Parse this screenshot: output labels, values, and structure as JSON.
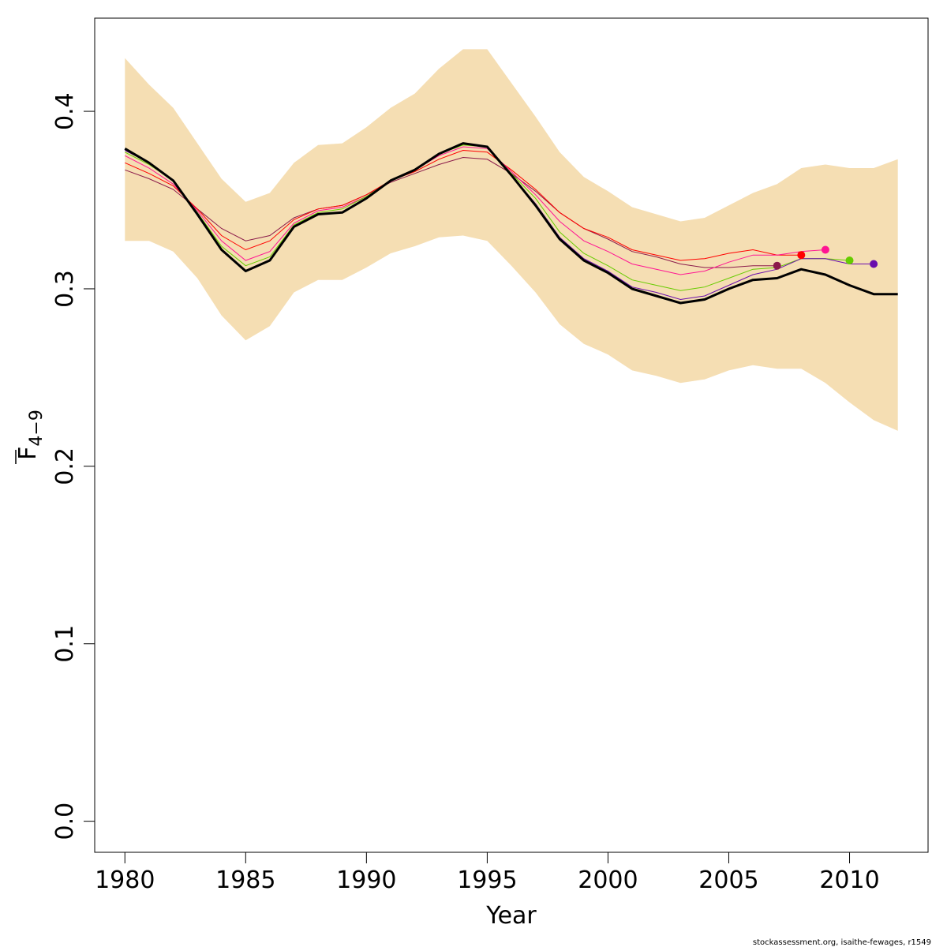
{
  "chart_data": {
    "type": "line",
    "xlabel": "Year",
    "ylabel": "F",
    "ylabel_subscript": "4−9",
    "credit": "stockassessment.org, isaithe-fewages, r1549",
    "xlim": [
      1978.75,
      2013.25
    ],
    "ylim": [
      -0.0175,
      0.4525
    ],
    "x_ticks": [
      1980,
      1985,
      1990,
      1995,
      2000,
      2005,
      2010
    ],
    "y_ticks": [
      0.0,
      0.1,
      0.2,
      0.3,
      0.4
    ],
    "y_tick_labels": [
      "0.0",
      "0.1",
      "0.2",
      "0.3",
      "0.4"
    ],
    "band_color": "#f5deb3",
    "confidence_band": {
      "x": [
        1980,
        1981,
        1982,
        1983,
        1984,
        1985,
        1986,
        1987,
        1988,
        1989,
        1990,
        1991,
        1992,
        1993,
        1994,
        1995,
        1996,
        1997,
        1998,
        1999,
        2000,
        2001,
        2002,
        2003,
        2004,
        2005,
        2006,
        2007,
        2008,
        2009,
        2010,
        2011,
        2012
      ],
      "lower": [
        0.327,
        0.327,
        0.321,
        0.306,
        0.285,
        0.271,
        0.279,
        0.298,
        0.305,
        0.305,
        0.312,
        0.32,
        0.324,
        0.329,
        0.33,
        0.327,
        0.313,
        0.298,
        0.28,
        0.269,
        0.263,
        0.254,
        0.251,
        0.247,
        0.249,
        0.254,
        0.257,
        0.255,
        0.255,
        0.247,
        0.236,
        0.226,
        0.22
      ],
      "upper": [
        0.43,
        0.415,
        0.402,
        0.382,
        0.362,
        0.349,
        0.354,
        0.371,
        0.381,
        0.382,
        0.391,
        0.402,
        0.41,
        0.424,
        0.435,
        0.435,
        0.416,
        0.397,
        0.377,
        0.363,
        0.355,
        0.346,
        0.342,
        0.338,
        0.34,
        0.347,
        0.354,
        0.359,
        0.368,
        0.37,
        0.368,
        0.368,
        0.373
      ]
    },
    "main_series": {
      "color": "#000000",
      "x": [
        1980,
        1981,
        1982,
        1983,
        1984,
        1985,
        1986,
        1987,
        1988,
        1989,
        1990,
        1991,
        1992,
        1993,
        1994,
        1995,
        1996,
        1997,
        1998,
        1999,
        2000,
        2001,
        2002,
        2003,
        2004,
        2005,
        2006,
        2007,
        2008,
        2009,
        2010,
        2011,
        2012
      ],
      "y": [
        0.379,
        0.371,
        0.361,
        0.342,
        0.322,
        0.31,
        0.316,
        0.335,
        0.342,
        0.343,
        0.351,
        0.361,
        0.367,
        0.376,
        0.382,
        0.38,
        0.364,
        0.347,
        0.328,
        0.316,
        0.309,
        0.3,
        0.296,
        0.292,
        0.294,
        0.3,
        0.305,
        0.306,
        0.311,
        0.308,
        0.302,
        0.297,
        0.297
      ]
    },
    "retro_series": [
      {
        "color": "#8b1a4a",
        "x": [
          1980,
          1981,
          1982,
          1983,
          1984,
          1985,
          1986,
          1987,
          1988,
          1989,
          1990,
          1991,
          1992,
          1993,
          1994,
          1995,
          1996,
          1997,
          1998,
          1999,
          2000,
          2001,
          2002,
          2003,
          2004,
          2005,
          2006,
          2007
        ],
        "y": [
          0.367,
          0.362,
          0.356,
          0.345,
          0.334,
          0.327,
          0.33,
          0.34,
          0.345,
          0.347,
          0.353,
          0.36,
          0.365,
          0.37,
          0.374,
          0.373,
          0.365,
          0.355,
          0.343,
          0.334,
          0.328,
          0.321,
          0.318,
          0.314,
          0.312,
          0.312,
          0.313,
          0.313
        ]
      },
      {
        "color": "#ff0000",
        "x": [
          1980,
          1981,
          1982,
          1983,
          1984,
          1985,
          1986,
          1987,
          1988,
          1989,
          1990,
          1991,
          1992,
          1993,
          1994,
          1995,
          1996,
          1997,
          1998,
          1999,
          2000,
          2001,
          2002,
          2003,
          2004,
          2005,
          2006,
          2007,
          2008
        ],
        "y": [
          0.371,
          0.365,
          0.358,
          0.345,
          0.33,
          0.322,
          0.327,
          0.339,
          0.345,
          0.347,
          0.353,
          0.361,
          0.366,
          0.373,
          0.378,
          0.377,
          0.367,
          0.356,
          0.343,
          0.334,
          0.329,
          0.322,
          0.319,
          0.316,
          0.317,
          0.32,
          0.322,
          0.319,
          0.319
        ]
      },
      {
        "color": "#ff1493",
        "x": [
          1980,
          1981,
          1982,
          1983,
          1984,
          1985,
          1986,
          1987,
          1988,
          1989,
          1990,
          1991,
          1992,
          1993,
          1994,
          1995,
          1996,
          1997,
          1998,
          1999,
          2000,
          2001,
          2002,
          2003,
          2004,
          2005,
          2006,
          2007,
          2008,
          2009
        ],
        "y": [
          0.375,
          0.368,
          0.359,
          0.344,
          0.327,
          0.316,
          0.321,
          0.337,
          0.344,
          0.346,
          0.352,
          0.361,
          0.367,
          0.375,
          0.38,
          0.379,
          0.366,
          0.353,
          0.338,
          0.327,
          0.321,
          0.314,
          0.311,
          0.308,
          0.31,
          0.315,
          0.319,
          0.319,
          0.321,
          0.322
        ]
      },
      {
        "color": "#66cc00",
        "x": [
          1980,
          1981,
          1982,
          1983,
          1984,
          1985,
          1986,
          1987,
          1988,
          1989,
          1990,
          1991,
          1992,
          1993,
          1994,
          1995,
          1996,
          1997,
          1998,
          1999,
          2000,
          2001,
          2002,
          2003,
          2004,
          2005,
          2006,
          2007,
          2008,
          2009,
          2010
        ],
        "y": [
          0.377,
          0.37,
          0.361,
          0.343,
          0.324,
          0.313,
          0.318,
          0.336,
          0.343,
          0.345,
          0.352,
          0.361,
          0.367,
          0.376,
          0.381,
          0.38,
          0.365,
          0.351,
          0.332,
          0.32,
          0.313,
          0.305,
          0.302,
          0.299,
          0.301,
          0.306,
          0.311,
          0.312,
          0.317,
          0.317,
          0.316
        ]
      },
      {
        "color": "#6a0dad",
        "x": [
          1980,
          1981,
          1982,
          1983,
          1984,
          1985,
          1986,
          1987,
          1988,
          1989,
          1990,
          1991,
          1992,
          1993,
          1994,
          1995,
          1996,
          1997,
          1998,
          1999,
          2000,
          2001,
          2002,
          2003,
          2004,
          2005,
          2006,
          2007,
          2008,
          2009,
          2010,
          2011
        ],
        "y": [
          0.378,
          0.371,
          0.361,
          0.342,
          0.322,
          0.31,
          0.316,
          0.335,
          0.342,
          0.343,
          0.351,
          0.361,
          0.367,
          0.376,
          0.382,
          0.38,
          0.364,
          0.348,
          0.329,
          0.317,
          0.31,
          0.301,
          0.298,
          0.294,
          0.296,
          0.302,
          0.308,
          0.311,
          0.317,
          0.317,
          0.314,
          0.314
        ]
      }
    ],
    "endpoints": [
      {
        "x": 2007,
        "y": 0.313,
        "color": "#8b1a4a"
      },
      {
        "x": 2008,
        "y": 0.319,
        "color": "#ff0000"
      },
      {
        "x": 2009,
        "y": 0.322,
        "color": "#ff1493"
      },
      {
        "x": 2010,
        "y": 0.316,
        "color": "#66cc00"
      },
      {
        "x": 2011,
        "y": 0.314,
        "color": "#6a0dad"
      }
    ]
  }
}
